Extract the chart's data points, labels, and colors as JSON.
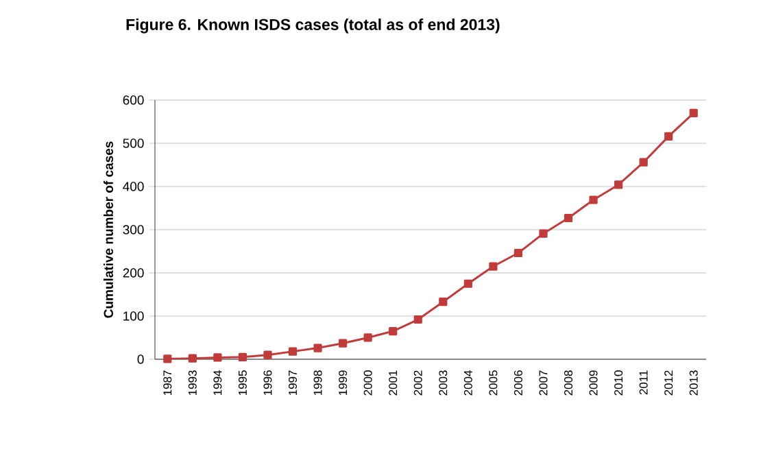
{
  "chart_data": {
    "type": "line",
    "title": "Figure 6. Known ISDS cases (total as of end 2013)",
    "ylabel": "Cumulative number of cases",
    "categories": [
      "1987",
      "1993",
      "1994",
      "1995",
      "1996",
      "1997",
      "1998",
      "1999",
      "2000",
      "2001",
      "2002",
      "2003",
      "2004",
      "2005",
      "2006",
      "2007",
      "2008",
      "2009",
      "2010",
      "2011",
      "2012",
      "2013"
    ],
    "series": [
      {
        "color": "#c23b3b",
        "values": [
          1,
          2,
          4,
          5,
          10,
          18,
          26,
          37,
          50,
          65,
          92,
          133,
          175,
          215,
          246,
          291,
          327,
          369,
          404,
          456,
          516,
          570
        ]
      }
    ],
    "ylim": [
      0,
      600
    ],
    "yticks": [
      0,
      100,
      200,
      300,
      400,
      500,
      600
    ],
    "grid": "y",
    "marker": "square",
    "line_style": "solid"
  }
}
